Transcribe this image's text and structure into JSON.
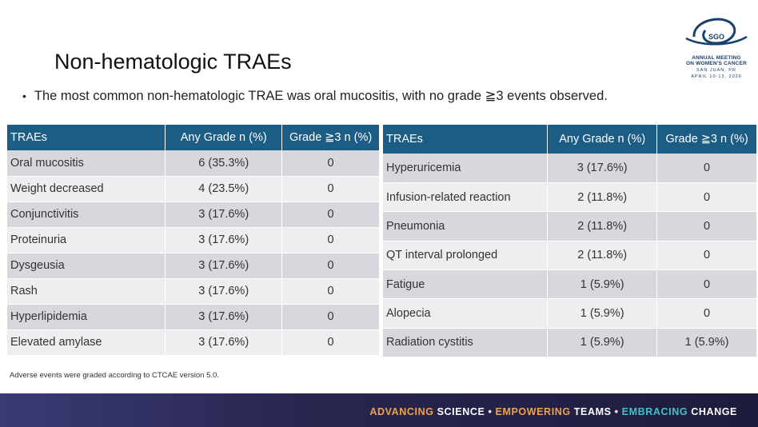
{
  "title": "Non-hematologic TRAEs",
  "bullet": "The most common non-hematologic TRAE was oral mucositis, with no grade ≧3 events observed.",
  "logo": {
    "badge": "SGO",
    "line1a": "ANNUAL MEETING",
    "line1b": "ON WOMEN'S CANCER",
    "line2a": "SAN JUAN, PR",
    "line2b": "APRIL 10-13, 2026"
  },
  "left_table": {
    "headers": [
      "TRAEs",
      "Any Grade n (%)",
      "Grade ≧3 n (%)"
    ],
    "rows": [
      [
        "Oral mucositis",
        "6 (35.3%)",
        "0"
      ],
      [
        "Weight decreased",
        "4 (23.5%)",
        "0"
      ],
      [
        "Conjunctivitis",
        "3 (17.6%)",
        "0"
      ],
      [
        "Proteinuria",
        "3 (17.6%)",
        "0"
      ],
      [
        "Dysgeusia",
        "3 (17.6%)",
        "0"
      ],
      [
        "Rash",
        "3 (17.6%)",
        "0"
      ],
      [
        "Hyperlipidemia",
        "3 (17.6%)",
        "0"
      ],
      [
        "Elevated amylase",
        "3 (17.6%)",
        "0"
      ]
    ]
  },
  "right_table": {
    "headers": [
      "TRAEs",
      "Any Grade n (%)",
      "Grade ≧3 n (%)"
    ],
    "rows": [
      [
        "Hyperuricemia",
        "3 (17.6%)",
        "0"
      ],
      [
        "Infusion-related reaction",
        "2 (11.8%)",
        "0"
      ],
      [
        "Pneumonia",
        "2 (11.8%)",
        "0"
      ],
      [
        "QT interval prolonged",
        "2 (11.8%)",
        "0"
      ],
      [
        "Fatigue",
        "1 (5.9%)",
        "0"
      ],
      [
        "Alopecia",
        "1 (5.9%)",
        "0"
      ],
      [
        "Radiation cystitis",
        "1 (5.9%)",
        "1 (5.9%)"
      ]
    ]
  },
  "footnote": "Adverse events were graded according to CTCAE version 5.0.",
  "footer": {
    "w1": "ADVANCING",
    "w2": " SCIENCE • ",
    "w3": "EMPOWERING",
    "w4": " TEAMS • ",
    "w5": "EMBRACING",
    "w6": " CHANGE"
  },
  "colors": {
    "header_bg": "#1c5d85",
    "row_dark": "#d6d8dd",
    "row_light": "#eceef0",
    "accent_orange": "#f0a24a",
    "accent_teal": "#3fc3c8"
  }
}
